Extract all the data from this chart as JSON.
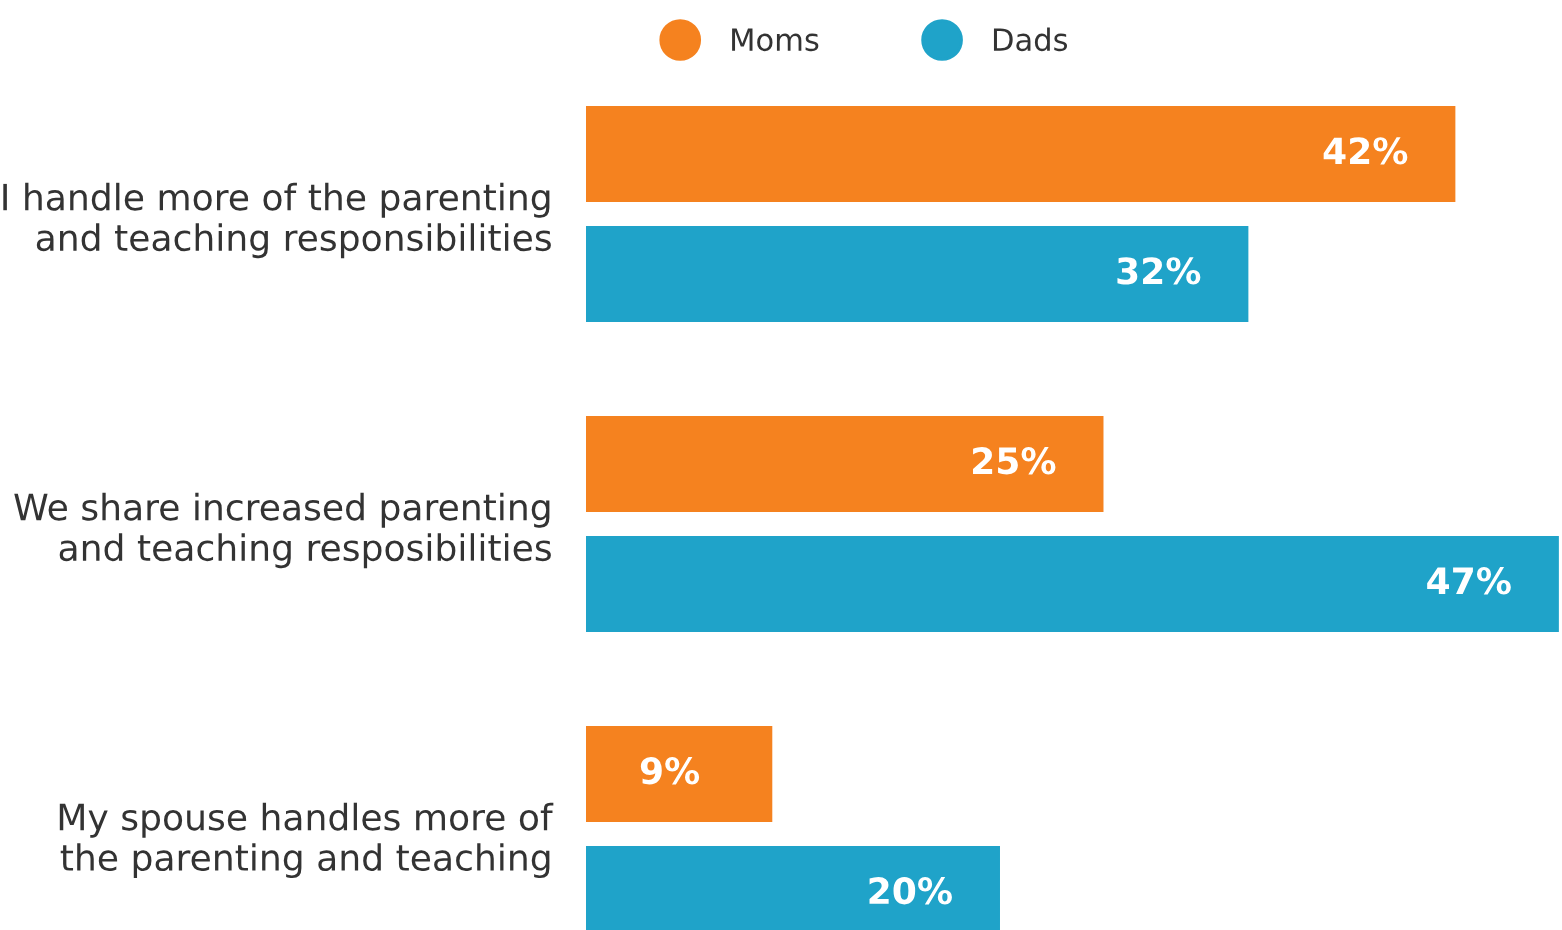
{
  "chart_data": {
    "type": "bar",
    "orientation": "horizontal",
    "categories": [
      "I handle more of the parenting\nand teaching responsibilities",
      "We share increased parenting\nand teaching resposibilities",
      "My spouse handles more of\nthe parenting and teaching"
    ],
    "series": [
      {
        "name": "Moms",
        "color": "#f5821f",
        "values": [
          42,
          25,
          9
        ],
        "value_labels": [
          "42%",
          "25%",
          "9%"
        ]
      },
      {
        "name": "Dads",
        "color": "#1fa3c9",
        "values": [
          32,
          47,
          20
        ],
        "value_labels": [
          "32%",
          "47%",
          "20%"
        ]
      }
    ],
    "xlim": [
      0,
      47
    ],
    "tick_labels": "y",
    "legend": "top",
    "grid": false
  }
}
